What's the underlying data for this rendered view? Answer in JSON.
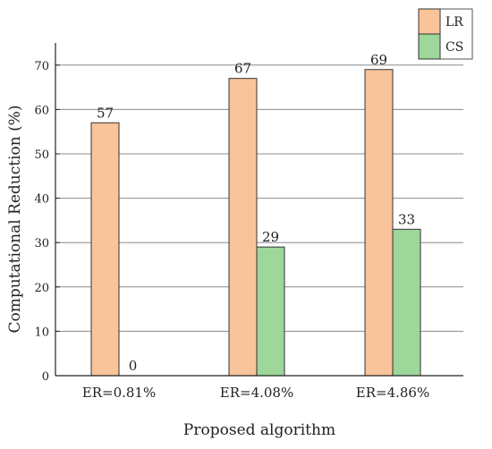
{
  "chart_data": {
    "type": "bar",
    "categories": [
      "ER=0.81%",
      "ER=4.08%",
      "ER=4.86%"
    ],
    "series": [
      {
        "name": "LR",
        "values": [
          57,
          67,
          69
        ],
        "color": "#f9c49a"
      },
      {
        "name": "CS",
        "values": [
          0,
          29,
          33
        ],
        "color": "#9dd79a"
      }
    ],
    "data_labels": [
      [
        "57",
        "67",
        "69"
      ],
      [
        "0",
        "29",
        "33"
      ]
    ],
    "xlabel": "Proposed algorithm",
    "ylabel": "Computational Reduction (%)",
    "ylim": [
      0,
      75
    ],
    "yticks": [
      0,
      10,
      20,
      30,
      40,
      50,
      60,
      70
    ],
    "grid": true,
    "legend_position": "top-right"
  }
}
